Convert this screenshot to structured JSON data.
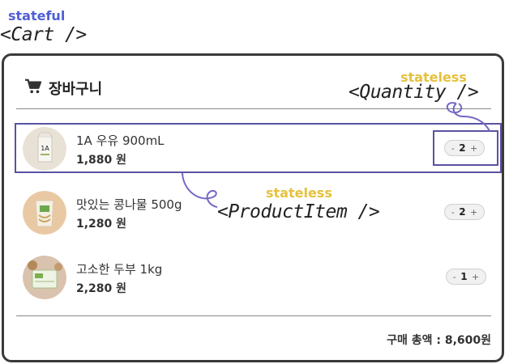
{
  "annotations": {
    "cart_state": "stateful",
    "cart_component": "<Cart />",
    "quantity_state": "stateless",
    "quantity_component": "<Quantity />",
    "item_state": "stateless",
    "item_component": "<ProductItem />"
  },
  "cart": {
    "icon": "cart-icon",
    "title": "장바구니",
    "items": [
      {
        "name": "1A 우유 900mL",
        "price": "1,880 원",
        "quantity": "2",
        "thumb": "milk-carton"
      },
      {
        "name": "맛있는 콩나물 500g",
        "price": "1,280 원",
        "quantity": "2",
        "thumb": "bean-sprouts"
      },
      {
        "name": "고소한 두부 1kg",
        "price": "2,280 원",
        "quantity": "1",
        "thumb": "tofu"
      }
    ],
    "decrement_symbol": "-",
    "increment_symbol": "+",
    "total": "구매 총액 : 8,600원"
  },
  "colors": {
    "stateful": "#4f5fd6",
    "stateless": "#e6c13a",
    "highlight": "#5a52a3",
    "connector": "#7268c4"
  }
}
